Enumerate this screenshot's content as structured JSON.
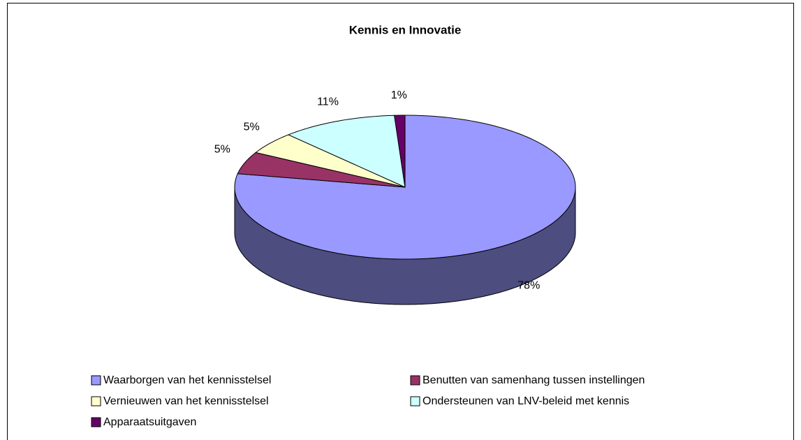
{
  "chart_data": {
    "type": "pie",
    "title": "Kennis en Innovatie",
    "categories": [
      "Waarborgen van het kennisstelsel",
      "Benutten van samenhang tussen instellingen",
      "Vernieuwen van het kennisstelsel",
      "Ondersteunen van LNV-beleid met kennis",
      "Apparaatsuitgaven"
    ],
    "values": [
      78,
      5,
      5,
      11,
      1
    ],
    "value_labels": [
      "78%",
      "5%",
      "5%",
      "11%",
      "1%"
    ],
    "colors": [
      "#9999ff",
      "#993366",
      "#ffffcc",
      "#ccffff",
      "#660066"
    ]
  }
}
